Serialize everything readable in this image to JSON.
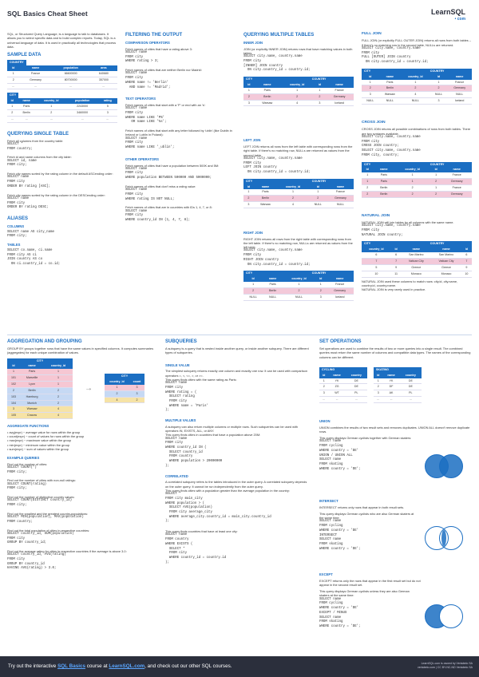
{
  "header": {
    "title": "SQL Basics Cheat Sheet",
    "logo_main": "LearnSQL",
    "logo_sub": "• com"
  },
  "intro": "SQL, or Structured Query Language, is a language to talk to databases. It allows you to select specific data and to build complex reports. Today, SQL is a universal language of data. It is used in practically all technologies that process data.",
  "sample_data": {
    "title": "SAMPLE DATA",
    "country": {
      "caption": "COUNTRY",
      "headers": [
        "id",
        "name",
        "population",
        "area"
      ],
      "rows": [
        [
          "1",
          "France",
          "66600000",
          "640680"
        ],
        [
          "2",
          "Germany",
          "80700000",
          "357000"
        ],
        [
          "...",
          "...",
          "...",
          "..."
        ]
      ]
    },
    "city": {
      "caption": "CITY",
      "headers": [
        "id",
        "name",
        "country_id",
        "population",
        "rating"
      ],
      "rows": [
        [
          "1",
          "Paris",
          "1",
          "2243000",
          "5"
        ],
        [
          "2",
          "Berlin",
          "2",
          "3460000",
          "3"
        ],
        [
          "...",
          "...",
          "...",
          "...",
          "..."
        ]
      ]
    }
  },
  "single": {
    "title": "QUERYING SINGLE TABLE",
    "items": [
      {
        "desc": "Fetch all columns from the country table:",
        "code": "SELECT *\nFROM country;"
      },
      {
        "desc": "Fetch id and name columns from the city table:",
        "code": "SELECT id, name\nFROM city;"
      },
      {
        "desc": "Fetch city names sorted by the rating column in the default ASCending order:",
        "code": "SELECT name\nFROM city\nORDER BY rating [ASC];"
      },
      {
        "desc": "Fetch city names sorted by the rating column in the DESCending order:",
        "code": "SELECT name\nFROM city\nORDER BY rating DESC;"
      }
    ]
  },
  "aliases": {
    "title": "ALIASES",
    "columns_label": "COLUMNS",
    "columns_code": "SELECT name AS city_name\nFROM city;",
    "tables_label": "TABLES",
    "tables_code": "SELECT co.name, ci.name\nFROM city AS ci\nJOIN country AS co\n  ON ci.country_id = co.id;"
  },
  "filtering": {
    "title": "FILTERING THE OUTPUT",
    "comparison_label": "COMPARISON OPERATORS",
    "comparison": [
      {
        "desc": "Fetch names of cities that have a rating above 3:",
        "code": "SELECT name\nFROM city\nWHERE rating > 3;"
      },
      {
        "desc": "Fetch names of cities that are neither Berlin nor Madrid:",
        "code": "SELECT name\nFROM city\nWHERE name != 'Berlin'\n  AND name != 'Madrid';"
      }
    ],
    "text_label": "TEXT OPERATORS",
    "text": [
      {
        "desc": "Fetch names of cities that start with a 'P' or end with an 's':",
        "code": "SELECT name\nFROM city\nWHERE name LIKE 'P%'\n   OR name LIKE '%s';"
      },
      {
        "desc": "Fetch names of cities that start with any letter followed by 'ublin' (like Dublin in Ireland or Lublin in Poland):",
        "code": "SELECT name\nFROM city\nWHERE name LIKE '_ublin';"
      }
    ],
    "other_label": "OTHER OPERATORS",
    "other": [
      {
        "desc": "Fetch names of cities that have a population between 500K and 5M:",
        "code": "SELECT name\nFROM city\nWHERE population BETWEEN 500000 AND 5000000;"
      },
      {
        "desc": "Fetch names of cities that don't miss a rating value:",
        "code": "SELECT name\nFROM city\nWHERE rating IS NOT NULL;"
      },
      {
        "desc": "Fetch names of cities that are in countries with IDs 1, 4, 7, or 8:",
        "code": "SELECT name\nFROM city\nWHERE country_id IN (1, 4, 7, 8);"
      }
    ]
  },
  "multiple": {
    "title": "QUERYING MULTIPLE TABLES",
    "inner_label": "INNER JOIN",
    "inner_desc": "JOIN (or explicitly INNER JOIN) returns rows that have matching values in both tables.",
    "inner_code": "SELECT city.name, country.name\nFROM city\n[INNER] JOIN country\n  ON city.country_id = country.id;",
    "left_label": "LEFT JOIN",
    "left_desc": "LEFT JOIN returns all rows from the left table with corresponding rows from the right table. If there's no matching row, NULLs are returned as values from the second table.",
    "left_code": "SELECT city.name, country.name\nFROM city\nLEFT JOIN country\n  ON city.country_id = country.id;",
    "right_label": "RIGHT JOIN",
    "right_desc": "RIGHT JOIN returns all rows from the right table with corresponding rows from the left table. If there's no matching row, NULLs are returned as values from the left table.",
    "right_code": "SELECT city.name, country.name\nFROM city\nRIGHT JOIN country\n  ON city.country_id = country.id;",
    "full_label": "FULL JOIN",
    "full_desc": "FULL JOIN (or explicitly FULL OUTER JOIN) returns all rows from both tables – if there's no matching row in the second table, NULLs are returned.",
    "full_code": "SELECT city.name, country.name\nFROM city\nFULL [OUTER] JOIN country\n  ON city.country_id = country.id;",
    "cross_label": "CROSS JOIN",
    "cross_desc": "CROSS JOIN returns all possible combinations of rows from both tables. There are two syntaxes available.",
    "cross_code1": "SELECT city.name, country.name\nFROM city\nCROSS JOIN country;",
    "cross_code2": "SELECT city.name, country.name\nFROM city, country;",
    "natural_label": "NATURAL JOIN",
    "natural_desc": "NATURAL JOIN will join tables by all columns with the same name.",
    "natural_code": "SELECT city.name, country.name\nFROM city\nNATURAL JOIN country;",
    "natural_note1": "NATURAL JOIN used these columns to match rows: city.id, city.name, country.id, country.name.",
    "natural_note2": "NATURAL JOIN is very rarely used in practice.",
    "city_cap": "CITY",
    "country_cap": "COUNTRY",
    "jh": [
      "id",
      "name",
      "country_id",
      "id",
      "name"
    ],
    "inner_rows": [
      [
        "1",
        "Paris",
        "1",
        "1",
        "France"
      ],
      [
        "2",
        "Berlin",
        "2",
        "2",
        "Germany"
      ],
      [
        "3",
        "Warsaw",
        "4",
        "3",
        "Iceland"
      ]
    ],
    "left_rows": [
      [
        "1",
        "Paris",
        "1",
        "1",
        "France"
      ],
      [
        "2",
        "Berlin",
        "2",
        "2",
        "Germany"
      ],
      [
        "3",
        "Warsaw",
        "4",
        "NULL",
        "NULL"
      ]
    ],
    "right_rows": [
      [
        "1",
        "Paris",
        "1",
        "1",
        "France"
      ],
      [
        "2",
        "Berlin",
        "2",
        "2",
        "Germany"
      ],
      [
        "NULL",
        "NULL",
        "NULL",
        "3",
        "Iceland"
      ]
    ],
    "full_rows": [
      [
        "1",
        "Paris",
        "1",
        "1",
        "France"
      ],
      [
        "2",
        "Berlin",
        "2",
        "2",
        "Germany"
      ],
      [
        "3",
        "Warsaw",
        "4",
        "NULL",
        "NULL"
      ],
      [
        "NULL",
        "NULL",
        "NULL",
        "3",
        "Iceland"
      ]
    ],
    "cross_rows": [
      [
        "1",
        "Paris",
        "1",
        "1",
        "France"
      ],
      [
        "1",
        "Paris",
        "1",
        "2",
        "Germany"
      ],
      [
        "2",
        "Berlin",
        "2",
        "1",
        "France"
      ],
      [
        "2",
        "Berlin",
        "2",
        "2",
        "Germany"
      ]
    ],
    "nh": [
      "country_id",
      "id",
      "name",
      "name",
      "id"
    ],
    "natural_rows": [
      [
        "6",
        "6",
        "San Marino",
        "San Marino",
        "6"
      ],
      [
        "7",
        "7",
        "Vatican City",
        "Vatican City",
        "7"
      ],
      [
        "5",
        "9",
        "Greece",
        "Greece",
        "9"
      ],
      [
        "10",
        "11",
        "Monaco",
        "Monaco",
        "10"
      ]
    ]
  },
  "aggregation": {
    "title": "AGGREGATION AND GROUPING",
    "desc": "GROUP BY groups together rows that have the same values in specified columns. It computes summaries (aggregates) for each unique combination of values.",
    "city_cap": "CITY",
    "h": [
      "id",
      "name",
      "country_id"
    ],
    "rows": [
      [
        "1",
        "Paris",
        "1"
      ],
      [
        "101",
        "Marseille",
        "1"
      ],
      [
        "102",
        "Lyon",
        "1"
      ],
      [
        "2",
        "Berlin",
        "2"
      ],
      [
        "103",
        "Hamburg",
        "2"
      ],
      [
        "104",
        "Munich",
        "2"
      ],
      [
        "3",
        "Warsaw",
        "4"
      ],
      [
        "105",
        "Cracow",
        "4"
      ]
    ],
    "result_cap": "CITY",
    "rh": [
      "country_id",
      "count"
    ],
    "rrows": [
      [
        "1",
        "3"
      ],
      [
        "2",
        "3"
      ],
      [
        "4",
        "2"
      ]
    ],
    "arrow": "→",
    "func_label": "AGGREGATE FUNCTIONS",
    "funcs": [
      "avg(expr) − average value for rows within the group",
      "count(expr) − count of values for rows within the group",
      "max(expr) − maximum value within the group",
      "min(expr) − minimum value within the group",
      "sum(expr) − sum of values within the group"
    ],
    "examples_label": "EXAMPLE QUERIES",
    "examples": [
      {
        "desc": "Find out the number of cities:",
        "code": "SELECT COUNT(*)\nFROM city;"
      },
      {
        "desc": "Find out the number of cities with non-null ratings:",
        "code": "SELECT COUNT(rating)\nFROM city;"
      },
      {
        "desc": "Find out the number of distinctive country values:",
        "code": "SELECT COUNT(DISTINCT country_id)\nFROM city;"
      },
      {
        "desc": "Find out the smallest and the greatest country populations:",
        "code": "SELECT MIN(population), MAX(population)\nFROM country;"
      },
      {
        "desc": "Find out the total population of cities in respective countries:",
        "code": "SELECT country_id, SUM(population)\nFROM city\nGROUP BY country_id;"
      },
      {
        "desc": "Find out the average rating for cities in respective countries if the average is above 3.0:",
        "code": "SELECT country_id, AVG(rating)\nFROM city\nGROUP BY country_id\nHAVING AVG(rating) > 3.0;"
      }
    ]
  },
  "subqueries": {
    "title": "SUBQUERIES",
    "desc": "A subquery is a query that is nested inside another query, or inside another subquery. There are different types of subqueries.",
    "single_label": "SINGLE VALUE",
    "single_desc": "The simplest subquery returns exactly one column and exactly one row. It can be used with comparison operators =, <, <=, >, or >=.\nThis query finds cities with the same rating as Paris:",
    "single_code": "SELECT name\nFROM city\nWHERE rating = (\n  SELECT rating\n  FROM city\n  WHERE name = 'Paris'\n);",
    "multi_label": "MULTIPLE VALUES",
    "multi_desc": "A subquery can also return multiple columns or multiple rows. Such subqueries can be used with operators IN, EXISTS, ALL, or ANY.\nThis query finds cities in countries that have a population above 20M:",
    "multi_code": "SELECT name\nFROM city\nWHERE country_id IN (\n  SELECT country_id\n  FROM country\n  WHERE population > 20000000\n);",
    "corr_label": "CORRELATED",
    "corr_desc": "A correlated subquery refers to the tables introduced in the outer query. A correlated subquery depends on the outer query. It cannot be run independently from the outer query.\nThis query finds cities with a population greater than the average population in the country:",
    "corr_code": "SELECT *\nFROM city main_city\nWHERE population > (\n  SELECT AVG(population)\n  FROM city average_city\n  WHERE average_city.country_id = main_city.country_id\n);",
    "corr_desc2": "This query finds countries that have at least one city:",
    "corr_code2": "SELECT name\nFROM country\nWHERE EXISTS (\n  SELECT *\n  FROM city\n  WHERE country_id = country.id\n);"
  },
  "setops": {
    "title": "SET OPERATIONS",
    "desc": "Set operations are used to combine the results of two or more queries into a single result. The combined queries must return the same number of columns and compatible data types. The names of the corresponding columns can be different.",
    "cycling_cap": "CYCLING",
    "skating_cap": "SKATING",
    "h": [
      "id",
      "name",
      "country"
    ],
    "cycling_rows": [
      [
        "1",
        "YK",
        "DE"
      ],
      [
        "2",
        "ZG",
        "DE"
      ],
      [
        "3",
        "WT",
        "PL"
      ],
      [
        "...",
        "...",
        "..."
      ]
    ],
    "skating_rows": [
      [
        "1",
        "YK",
        "DE"
      ],
      [
        "2",
        "DF",
        "DE"
      ],
      [
        "3",
        "AK",
        "PL"
      ],
      [
        "...",
        "...",
        "..."
      ]
    ],
    "union_label": "UNION",
    "union_desc": "UNION combines the results of two result sets and removes duplicates. UNION ALL doesn't remove duplicate rows.",
    "union_desc2": "This query displays German cyclists together with German skaters:",
    "union_code": "SELECT name\nFROM cycling\nWHERE country = 'DE'\nUNION / UNION ALL\nSELECT name\nFROM skating\nWHERE country = 'DE';",
    "intersect_label": "INTERSECT",
    "intersect_desc": "INTERSECT returns only rows that appear in both result sets.",
    "intersect_desc2": "This query displays German cyclists who are also German skaters at the same time:",
    "intersect_code": "SELECT name\nFROM cycling\nWHERE country = 'DE'\nINTERSECT\nSELECT name\nFROM skating\nWHERE country = 'DE';",
    "except_label": "EXCEPT",
    "except_desc": "EXCEPT returns only the rows that appear in the first result set but do not appear in the second result set.",
    "except_desc2": "This query displays German cyclists unless they are also German skaters at the same time:",
    "except_code": "SELECT name\nFROM cycling\nWHERE country = 'DE'\nEXCEPT / MINUS\nSELECT name\nFROM skating\nWHERE country = 'DE';"
  },
  "footer": {
    "text_pre": "Try out the interactive ",
    "link1": "SQL Basics",
    "text_mid": " course at ",
    "link2": "LearnSQL.com",
    "text_post": ", and check out our other SQL courses.",
    "right1": "LearnSQL.com is owned by Vertabelo SA",
    "right2": "vertabelo.com | CC BY-NC-ND Vertabelo SA"
  }
}
